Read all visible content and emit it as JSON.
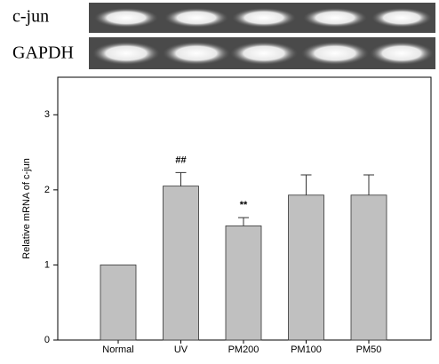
{
  "blots": [
    {
      "label": "c-jun"
    },
    {
      "label": "GAPDH"
    }
  ],
  "chart_data": {
    "type": "bar",
    "y_label": "Relative mRNA of c-jun",
    "categories": [
      "Normal",
      "UV",
      "PM200",
      "PM100",
      "PM50"
    ],
    "values": [
      1.0,
      2.05,
      1.52,
      1.93,
      1.93
    ],
    "errors": [
      0,
      0.18,
      0.11,
      0.27,
      0.27
    ],
    "color": "#c0c0c0",
    "annotations": [
      {
        "category": 1,
        "text": "##"
      },
      {
        "category": 2,
        "text": "**"
      }
    ],
    "ylim": [
      0,
      3.5
    ],
    "yticks": [
      0,
      1,
      2,
      3
    ]
  }
}
